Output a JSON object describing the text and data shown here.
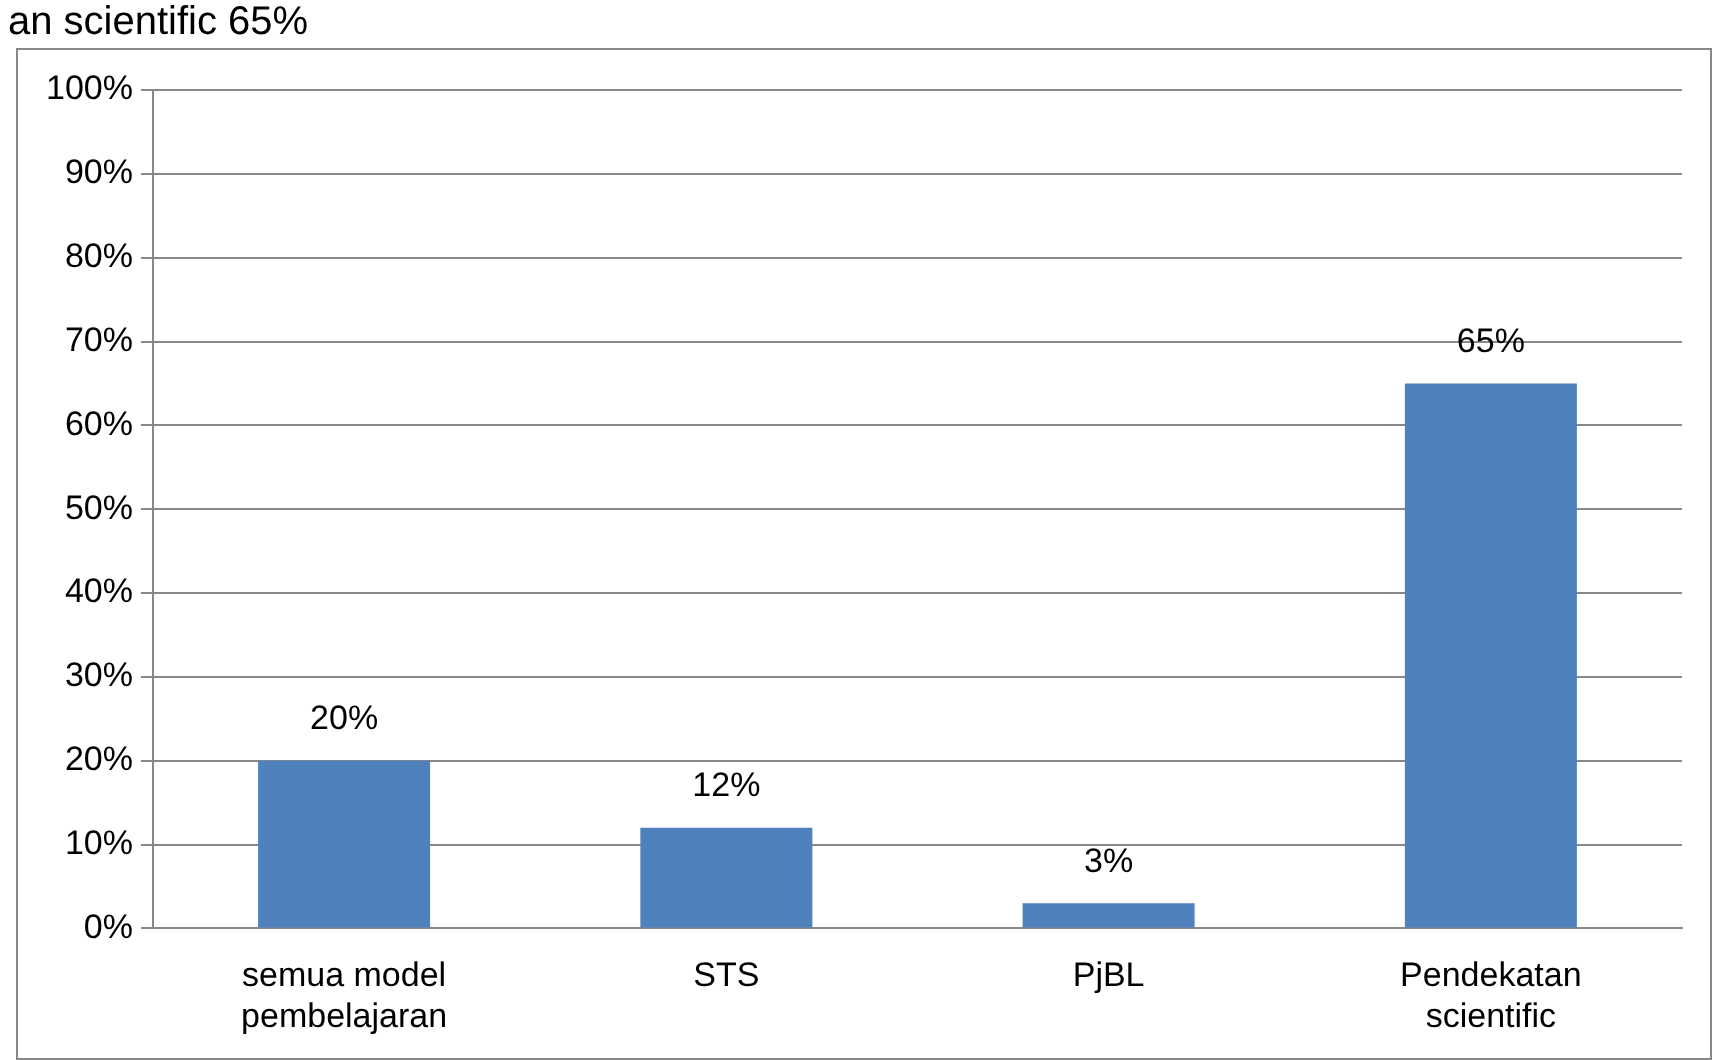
{
  "chart_data": {
    "type": "bar",
    "categories": [
      [
        "semua model",
        "pembelajaran"
      ],
      "STS",
      "PjBL",
      [
        "Pendekatan",
        "scientific"
      ]
    ],
    "values": [
      20,
      12,
      3,
      65
    ],
    "color": "#4f81bd",
    "value_labels": [
      "20%",
      "12%",
      "3%",
      "65%"
    ],
    "ylim": [
      0,
      100
    ],
    "yticks": [
      {
        "value": 0,
        "label": "0%"
      },
      {
        "value": 10,
        "label": "10%"
      },
      {
        "value": 20,
        "label": "20%"
      },
      {
        "value": 30,
        "label": "30%"
      },
      {
        "value": 40,
        "label": "40%"
      },
      {
        "value": 50,
        "label": "50%"
      },
      {
        "value": 60,
        "label": "60%"
      },
      {
        "value": 70,
        "label": "70%"
      },
      {
        "value": 80,
        "label": "80%"
      },
      {
        "value": 90,
        "label": "90%"
      },
      {
        "value": 100,
        "label": "100%"
      }
    ],
    "grid": "y",
    "legend": false,
    "annotations": [
      "an scientific 65%"
    ]
  }
}
